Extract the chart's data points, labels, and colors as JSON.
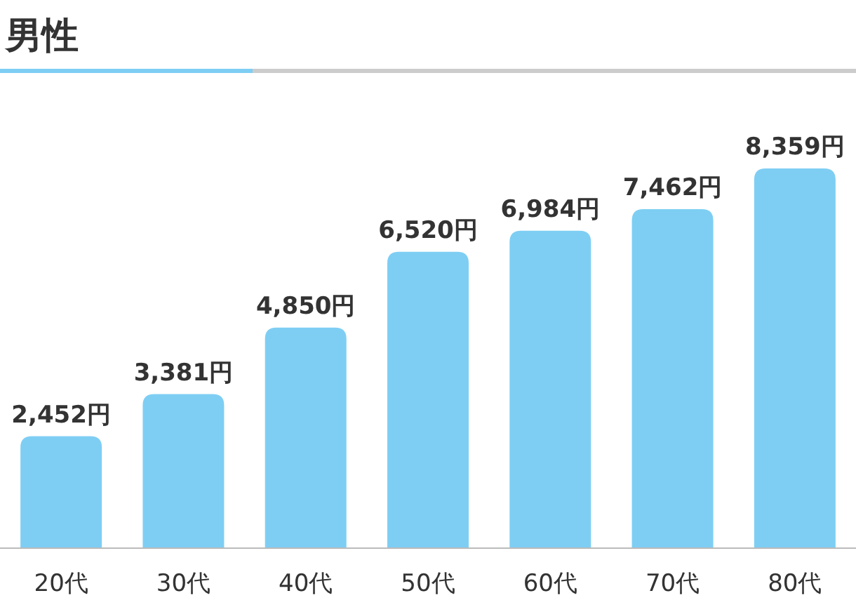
{
  "chart_data": {
    "type": "bar",
    "title": "男性",
    "categories": [
      "20代",
      "30代",
      "40代",
      "50代",
      "60代",
      "70代",
      "80代"
    ],
    "values": [
      2452,
      3381,
      4850,
      6520,
      6984,
      7462,
      8359
    ],
    "value_labels": [
      "2,452円",
      "3,381円",
      "4,850円",
      "6,520円",
      "6,984円",
      "7,462円",
      "8,359円"
    ],
    "color": "#7ecef4"
  }
}
